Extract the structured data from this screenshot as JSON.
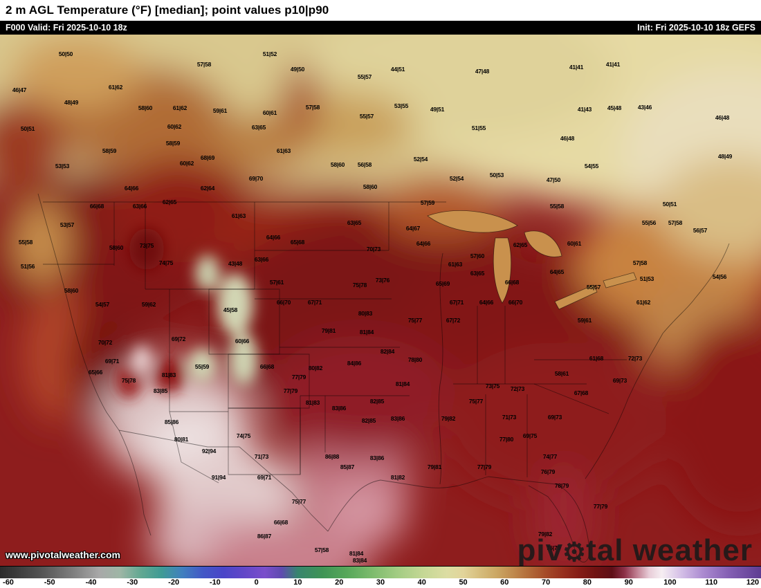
{
  "header": {
    "title": "2 m AGL Temperature (°F) [median]; point values p10|p90"
  },
  "infobar": {
    "left": "F000 Valid: Fri 2025-10-10 18z",
    "right": "Init: Fri 2025-10-10 18z GEFS"
  },
  "watermark": {
    "url": "www.pivotalweather.com",
    "brand_pre": "piv",
    "brand_gear": "⚙",
    "brand_post": "tal weather"
  },
  "colorbar": {
    "unit": "°F",
    "domain": [
      -62,
      122
    ],
    "ticks": [
      -60,
      -50,
      -40,
      -30,
      -20,
      -10,
      0,
      10,
      20,
      30,
      40,
      50,
      60,
      70,
      80,
      90,
      100,
      110,
      120
    ],
    "stops": [
      [
        -62,
        "#2b2b2b"
      ],
      [
        -52,
        "#545454"
      ],
      [
        -44,
        "#808080"
      ],
      [
        -38,
        "#a8a8a8"
      ],
      [
        -33,
        "#9eb6a6"
      ],
      [
        -28,
        "#62a892"
      ],
      [
        -23,
        "#3f9b94"
      ],
      [
        -18,
        "#4080be"
      ],
      [
        -13,
        "#4258c6"
      ],
      [
        -8,
        "#4a45c8"
      ],
      [
        -3,
        "#6247c8"
      ],
      [
        2,
        "#7a4ecb"
      ],
      [
        6,
        "#5f4ab0"
      ],
      [
        10,
        "#37856e"
      ],
      [
        16,
        "#3f9455"
      ],
      [
        22,
        "#57a85a"
      ],
      [
        28,
        "#7dbb6d"
      ],
      [
        34,
        "#a2cc82"
      ],
      [
        40,
        "#c3d794"
      ],
      [
        46,
        "#dcdda2"
      ],
      [
        50,
        "#e2d49a"
      ],
      [
        54,
        "#d6bd7c"
      ],
      [
        58,
        "#cba763"
      ],
      [
        62,
        "#c08a4e"
      ],
      [
        66,
        "#b26a38"
      ],
      [
        70,
        "#a54a28"
      ],
      [
        74,
        "#97301e"
      ],
      [
        78,
        "#851c16"
      ],
      [
        82,
        "#701212"
      ],
      [
        86,
        "#5e0e16"
      ],
      [
        89,
        "#8c3048"
      ],
      [
        92,
        "#c07f92"
      ],
      [
        95,
        "#e8cdd8"
      ],
      [
        98,
        "#f6eef2"
      ],
      [
        103,
        "#d2bce6"
      ],
      [
        108,
        "#ab8ad0"
      ],
      [
        114,
        "#8560b4"
      ],
      [
        122,
        "#5e3c92"
      ]
    ]
  },
  "map": {
    "point_values": [
      [
        95,
        28,
        "50|50"
      ],
      [
        390,
        28,
        "51|52"
      ],
      [
        295,
        43,
        "57|58"
      ],
      [
        430,
        50,
        "49|50"
      ],
      [
        833,
        47,
        "41|41"
      ],
      [
        886,
        43,
        "41|41"
      ],
      [
        527,
        61,
        "55|57"
      ],
      [
        575,
        50,
        "44|51"
      ],
      [
        697,
        53,
        "47|48"
      ],
      [
        28,
        80,
        "46|47"
      ],
      [
        167,
        76,
        "61|62"
      ],
      [
        103,
        98,
        "48|49"
      ],
      [
        210,
        106,
        "58|60"
      ],
      [
        260,
        106,
        "61|62"
      ],
      [
        318,
        110,
        "59|61"
      ],
      [
        390,
        113,
        "60|61"
      ],
      [
        452,
        105,
        "57|58"
      ],
      [
        530,
        118,
        "55|57"
      ],
      [
        580,
        103,
        "53|55"
      ],
      [
        632,
        108,
        "49|51"
      ],
      [
        845,
        108,
        "41|43"
      ],
      [
        888,
        106,
        "45|48"
      ],
      [
        932,
        105,
        "43|46"
      ],
      [
        1044,
        120,
        "46|48"
      ],
      [
        40,
        136,
        "50|51"
      ],
      [
        252,
        133,
        "60|62"
      ],
      [
        374,
        134,
        "63|65"
      ],
      [
        692,
        135,
        "51|55"
      ],
      [
        820,
        150,
        "46|48"
      ],
      [
        158,
        168,
        "58|59"
      ],
      [
        250,
        157,
        "58|59"
      ],
      [
        410,
        168,
        "61|63"
      ],
      [
        608,
        180,
        "52|54"
      ],
      [
        1048,
        176,
        "48|49"
      ],
      [
        90,
        190,
        "53|53"
      ],
      [
        270,
        186,
        "60|62"
      ],
      [
        300,
        178,
        "68|69"
      ],
      [
        488,
        188,
        "58|60"
      ],
      [
        527,
        188,
        "56|58"
      ],
      [
        718,
        203,
        "50|53"
      ],
      [
        800,
        210,
        "47|50"
      ],
      [
        855,
        190,
        "54|55"
      ],
      [
        370,
        208,
        "69|70"
      ],
      [
        660,
        208,
        "52|54"
      ],
      [
        190,
        222,
        "64|66"
      ],
      [
        300,
        222,
        "62|64"
      ],
      [
        535,
        220,
        "58|60"
      ],
      [
        618,
        243,
        "57|59"
      ],
      [
        140,
        248,
        "66|68"
      ],
      [
        202,
        248,
        "63|66"
      ],
      [
        245,
        242,
        "62|65"
      ],
      [
        805,
        248,
        "55|58"
      ],
      [
        968,
        245,
        "50|51"
      ],
      [
        97,
        275,
        "53|57"
      ],
      [
        345,
        262,
        "61|63"
      ],
      [
        512,
        272,
        "63|65"
      ],
      [
        597,
        280,
        "64|67"
      ],
      [
        938,
        272,
        "55|56"
      ],
      [
        976,
        272,
        "57|58"
      ],
      [
        37,
        300,
        "55|58"
      ],
      [
        168,
        308,
        "58|60"
      ],
      [
        212,
        305,
        "73|75"
      ],
      [
        612,
        302,
        "64|66"
      ],
      [
        752,
        304,
        "62|65"
      ],
      [
        830,
        302,
        "60|61"
      ],
      [
        1012,
        283,
        "56|57"
      ],
      [
        395,
        293,
        "64|66"
      ],
      [
        430,
        300,
        "65|68"
      ],
      [
        540,
        310,
        "70|73"
      ],
      [
        240,
        330,
        "74|75"
      ],
      [
        340,
        331,
        "43|48"
      ],
      [
        378,
        325,
        "63|66"
      ],
      [
        690,
        320,
        "57|60"
      ],
      [
        658,
        332,
        "61|63"
      ],
      [
        925,
        330,
        "57|58"
      ],
      [
        40,
        335,
        "51|56"
      ],
      [
        103,
        370,
        "58|60"
      ],
      [
        400,
        358,
        "57|61"
      ],
      [
        520,
        362,
        "75|78"
      ],
      [
        553,
        355,
        "73|76"
      ],
      [
        640,
        360,
        "65|69"
      ],
      [
        690,
        345,
        "63|65"
      ],
      [
        740,
        358,
        "66|68"
      ],
      [
        805,
        343,
        "64|65"
      ],
      [
        858,
        365,
        "55|57"
      ],
      [
        935,
        353,
        "51|53"
      ],
      [
        1040,
        350,
        "54|56"
      ],
      [
        148,
        390,
        "54|57"
      ],
      [
        215,
        390,
        "59|62"
      ],
      [
        333,
        398,
        "45|58"
      ],
      [
        410,
        387,
        "66|70"
      ],
      [
        455,
        387,
        "67|71"
      ],
      [
        528,
        403,
        "80|83"
      ],
      [
        660,
        387,
        "67|71"
      ],
      [
        703,
        387,
        "64|66"
      ],
      [
        745,
        387,
        "66|70"
      ],
      [
        930,
        387,
        "61|62"
      ],
      [
        845,
        413,
        "59|61"
      ],
      [
        152,
        445,
        "70|72"
      ],
      [
        258,
        440,
        "69|72"
      ],
      [
        350,
        443,
        "60|66"
      ],
      [
        475,
        428,
        "79|81"
      ],
      [
        530,
        430,
        "81|84"
      ],
      [
        600,
        413,
        "75|77"
      ],
      [
        655,
        413,
        "67|72"
      ],
      [
        560,
        458,
        "82|84"
      ],
      [
        600,
        470,
        "78|80"
      ],
      [
        162,
        472,
        "69|71"
      ],
      [
        138,
        488,
        "65|66"
      ],
      [
        186,
        500,
        "75|78"
      ],
      [
        244,
        492,
        "81|83"
      ],
      [
        292,
        480,
        "55|59"
      ],
      [
        386,
        480,
        "66|68"
      ],
      [
        432,
        495,
        "77|79"
      ],
      [
        456,
        482,
        "80|82"
      ],
      [
        512,
        475,
        "84|86"
      ],
      [
        582,
        505,
        "81|84"
      ],
      [
        545,
        530,
        "82|85"
      ],
      [
        575,
        555,
        "83|86"
      ],
      [
        420,
        515,
        "77|79"
      ],
      [
        452,
        532,
        "81|83"
      ],
      [
        490,
        540,
        "83|86"
      ],
      [
        533,
        558,
        "82|85"
      ],
      [
        480,
        610,
        "86|88"
      ],
      [
        502,
        625,
        "85|87"
      ],
      [
        545,
        612,
        "83|86"
      ],
      [
        575,
        640,
        "81|82"
      ],
      [
        628,
        625,
        "79|81"
      ],
      [
        648,
        555,
        "79|82"
      ],
      [
        688,
        530,
        "75|77"
      ],
      [
        712,
        508,
        "73|75"
      ],
      [
        748,
        512,
        "72|73"
      ],
      [
        736,
        553,
        "71|73"
      ],
      [
        802,
        553,
        "69|73"
      ],
      [
        766,
        580,
        "69|75"
      ],
      [
        732,
        585,
        "77|80"
      ],
      [
        700,
        625,
        "77|79"
      ],
      [
        840,
        518,
        "67|68"
      ],
      [
        812,
        490,
        "58|61"
      ],
      [
        862,
        468,
        "61|68"
      ],
      [
        896,
        500,
        "69|73"
      ],
      [
        918,
        468,
        "72|73"
      ],
      [
        795,
        610,
        "74|77"
      ],
      [
        792,
        632,
        "76|79"
      ],
      [
        812,
        652,
        "78|79"
      ],
      [
        868,
        682,
        "77|79"
      ],
      [
        788,
        722,
        "79|82"
      ],
      [
        800,
        742,
        "76|79"
      ],
      [
        302,
        602,
        "92|94"
      ],
      [
        316,
        640,
        "91|94"
      ],
      [
        378,
        610,
        "71|73"
      ],
      [
        382,
        640,
        "69|71"
      ],
      [
        432,
        675,
        "75|77"
      ],
      [
        406,
        705,
        "66|68"
      ],
      [
        382,
        725,
        "86|87"
      ],
      [
        515,
        750,
        "81|84"
      ],
      [
        465,
        745,
        "57|58"
      ],
      [
        520,
        760,
        "83|84"
      ],
      [
        248,
        560,
        "85|86"
      ],
      [
        262,
        585,
        "80|81"
      ],
      [
        352,
        580,
        "74|75"
      ],
      [
        232,
        515,
        "83|85"
      ]
    ]
  }
}
